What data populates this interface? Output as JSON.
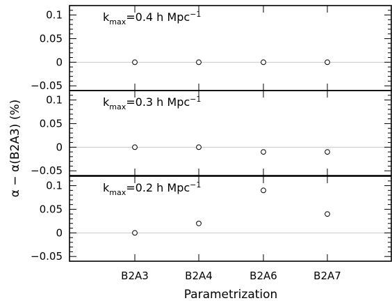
{
  "chart_data": {
    "type": "scatter",
    "xlabel": "Parametrization",
    "ylabel": "α − α(B2A3) (%)",
    "categories": [
      "B2A3",
      "B2A4",
      "B2A6",
      "B2A7"
    ],
    "panels": [
      {
        "annotation": {
          "k": "k",
          "sub": "max",
          "value": "=0.4 h Mpc",
          "sup": "−1"
        },
        "ylim": [
          -0.06,
          0.12
        ],
        "yticks": [
          0.1,
          0.05,
          0,
          -0.05
        ],
        "yticklabels": [
          "0.1",
          "0.05",
          "0",
          "−0.05"
        ],
        "values": [
          0,
          0,
          0,
          0
        ]
      },
      {
        "annotation": {
          "k": "k",
          "sub": "max",
          "value": "=0.3 h Mpc",
          "sup": "−1"
        },
        "ylim": [
          -0.06,
          0.12
        ],
        "yticks": [
          0.1,
          0.05,
          0,
          -0.05
        ],
        "yticklabels": [
          "0.1",
          "0.05",
          "0",
          "−0.05"
        ],
        "values": [
          0,
          0,
          -0.01,
          -0.01
        ]
      },
      {
        "annotation": {
          "k": "k",
          "sub": "max",
          "value": "=0.2 h Mpc",
          "sup": "−1"
        },
        "ylim": [
          -0.06,
          0.12
        ],
        "yticks": [
          0.1,
          0.05,
          0,
          -0.05
        ],
        "yticklabels": [
          "0.1",
          "0.05",
          "0",
          "−0.05"
        ],
        "values": [
          0,
          0.02,
          0.09,
          0.04
        ]
      }
    ],
    "grid": false,
    "zero_line": true,
    "marker": "open-circle",
    "colors": {
      "axes": "#000000",
      "zero_line": "#c8c8c8",
      "marker": "#000000"
    }
  }
}
